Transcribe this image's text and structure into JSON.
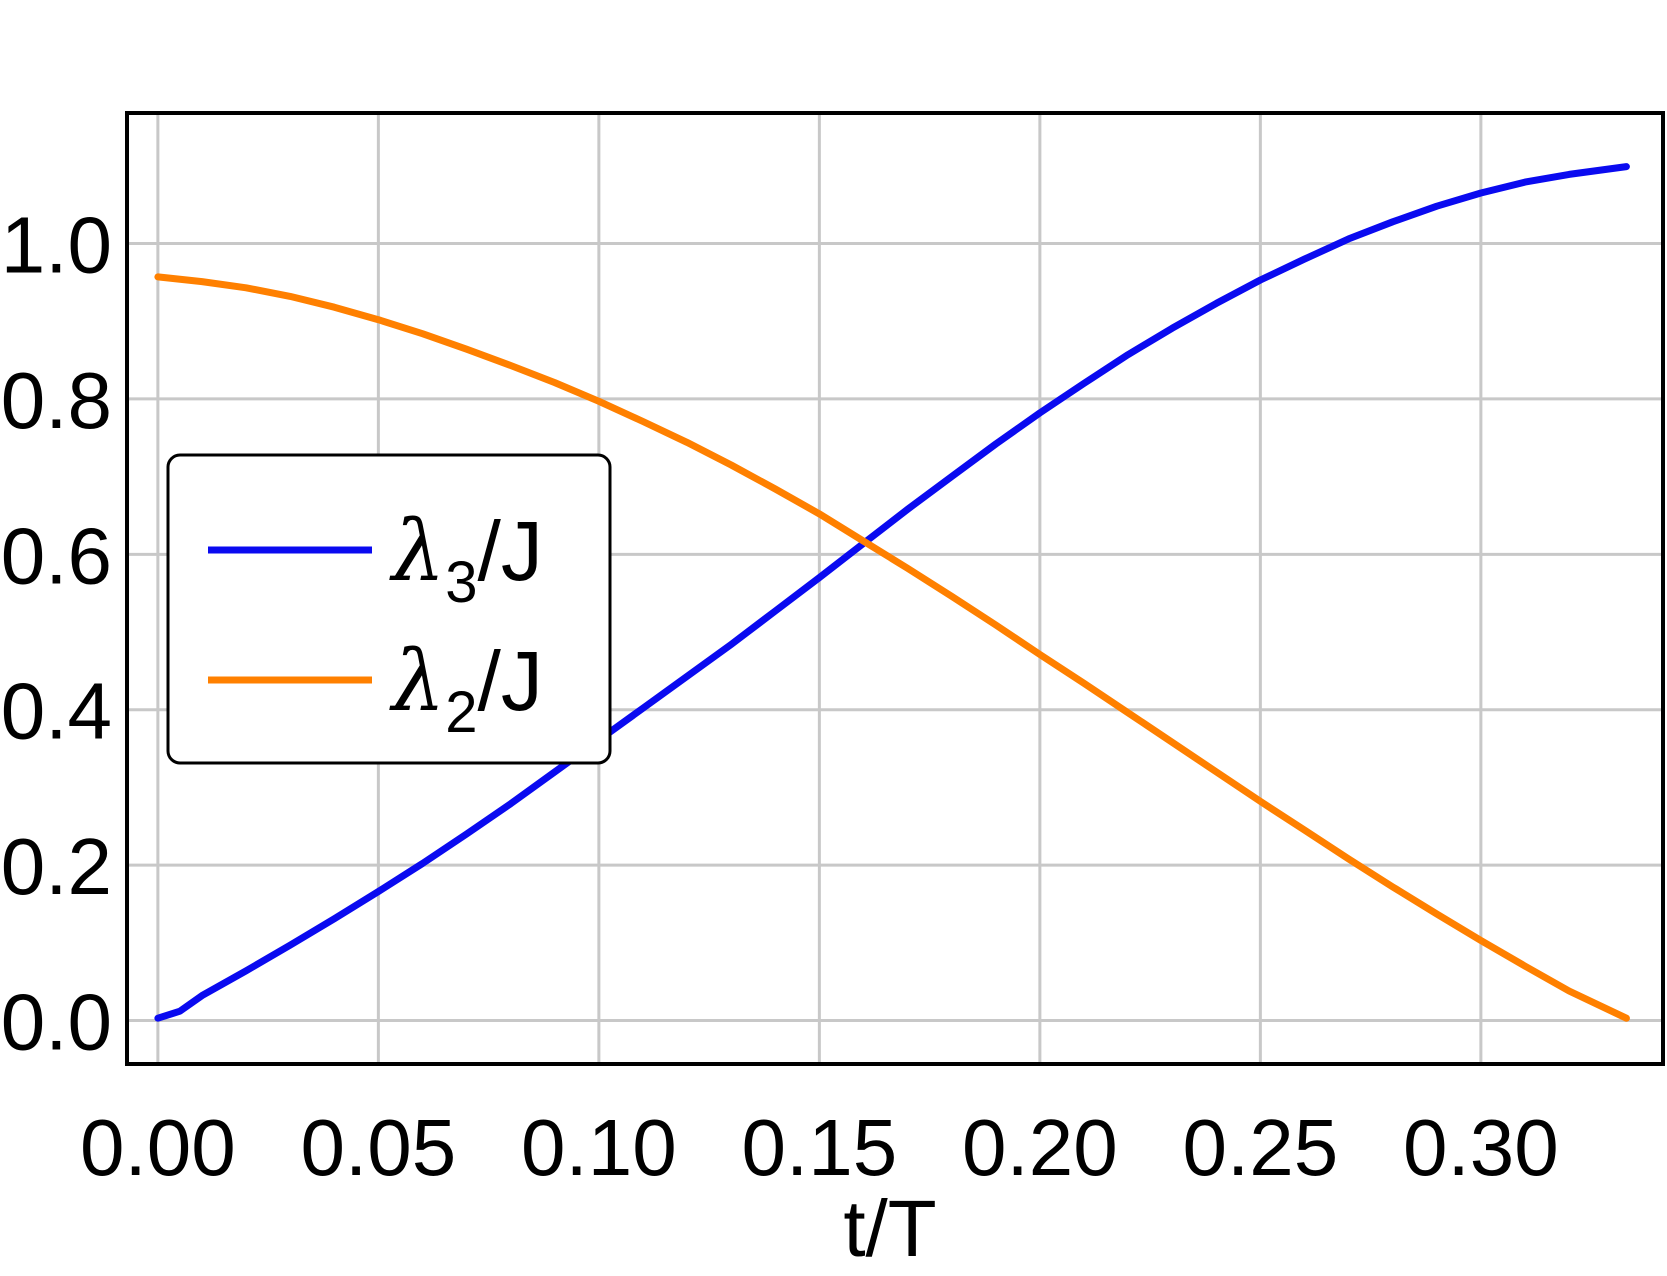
{
  "chart_data": {
    "type": "line",
    "xlabel": "t/T",
    "ylabel": "",
    "xlim": [
      -0.007,
      0.3413
    ],
    "ylim": [
      -0.056,
      1.168
    ],
    "x_ticks": [
      "0.00",
      "0.05",
      "0.10",
      "0.15",
      "0.20",
      "0.25",
      "0.30"
    ],
    "y_ticks": [
      "0.0",
      "0.2",
      "0.4",
      "0.6",
      "0.8",
      "1.0"
    ],
    "grid": true,
    "legend_position": "left-middle",
    "series": [
      {
        "name": "λ3/J",
        "legend": {
          "symbol": "λ",
          "sub": "3",
          "suffix": "/J"
        },
        "color": "#0a0af0",
        "x": [
          0.0,
          0.005,
          0.01,
          0.02,
          0.03,
          0.04,
          0.05,
          0.06,
          0.07,
          0.08,
          0.09,
          0.1,
          0.11,
          0.12,
          0.13,
          0.14,
          0.15,
          0.16,
          0.17,
          0.18,
          0.19,
          0.2,
          0.21,
          0.22,
          0.23,
          0.24,
          0.25,
          0.26,
          0.27,
          0.28,
          0.29,
          0.3,
          0.31,
          0.32,
          0.333
        ],
        "y": [
          0.003,
          0.012,
          0.032,
          0.064,
          0.097,
          0.131,
          0.166,
          0.202,
          0.24,
          0.279,
          0.32,
          0.361,
          0.402,
          0.443,
          0.484,
          0.527,
          0.57,
          0.614,
          0.658,
          0.7,
          0.742,
          0.782,
          0.82,
          0.857,
          0.891,
          0.923,
          0.953,
          0.98,
          1.006,
          1.028,
          1.048,
          1.065,
          1.079,
          1.089,
          1.099
        ]
      },
      {
        "name": "λ2/J",
        "legend": {
          "symbol": "λ",
          "sub": "2",
          "suffix": "/J"
        },
        "color": "#ff8000",
        "x": [
          0.0,
          0.01,
          0.02,
          0.03,
          0.04,
          0.05,
          0.06,
          0.07,
          0.08,
          0.09,
          0.1,
          0.11,
          0.12,
          0.13,
          0.14,
          0.15,
          0.16,
          0.17,
          0.18,
          0.19,
          0.2,
          0.21,
          0.22,
          0.23,
          0.24,
          0.25,
          0.26,
          0.27,
          0.28,
          0.29,
          0.3,
          0.31,
          0.32,
          0.333
        ],
        "y": [
          0.957,
          0.951,
          0.943,
          0.932,
          0.918,
          0.902,
          0.884,
          0.864,
          0.843,
          0.821,
          0.797,
          0.771,
          0.744,
          0.715,
          0.684,
          0.652,
          0.617,
          0.582,
          0.546,
          0.509,
          0.471,
          0.434,
          0.396,
          0.358,
          0.32,
          0.282,
          0.245,
          0.208,
          0.172,
          0.137,
          0.103,
          0.07,
          0.038,
          0.003
        ]
      }
    ]
  }
}
